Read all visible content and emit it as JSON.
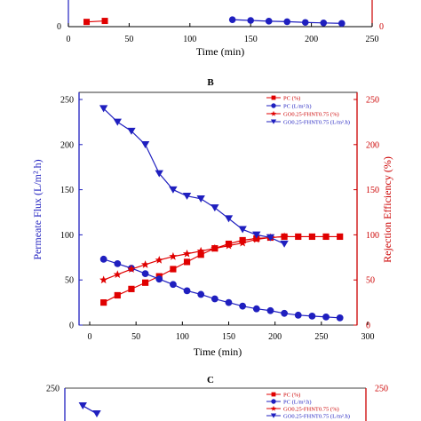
{
  "colors": {
    "blue": "#1f1fbf",
    "red": "#e00000",
    "axis_red": "#cc0000",
    "black": "#000000"
  },
  "chart_data": [
    {
      "panel": "top",
      "type": "line",
      "label": "",
      "xlabel": "Time (min)",
      "x_ticks": [
        "0",
        "50",
        "100",
        "150",
        "200",
        "250"
      ],
      "xlim": [
        0,
        250
      ],
      "left_ticks": [
        "0"
      ],
      "right_ticks": [
        "0"
      ],
      "series": [
        {
          "marker": "square",
          "color": "#e00000",
          "axis": "right",
          "x": [
            15,
            30
          ],
          "y": [
            19,
            23
          ]
        },
        {
          "marker": "circle",
          "color": "#1f1fbf",
          "axis": "left",
          "x": [
            135,
            150,
            165,
            180,
            195,
            210,
            225
          ],
          "y": [
            28,
            25,
            22,
            20,
            17,
            15,
            13
          ]
        }
      ]
    },
    {
      "panel": "B",
      "type": "line",
      "label": "B",
      "xlabel": "Time (min)",
      "ylabel": "Permeate Flux (L/m².h)",
      "y2label": "Rejection Efficiency (%)",
      "xlim": [
        0,
        300
      ],
      "ylim": [
        0,
        250
      ],
      "y2lim": [
        0,
        250
      ],
      "x_ticks": [
        "0",
        "50",
        "100",
        "150",
        "200",
        "250",
        "300"
      ],
      "left_ticks": [
        "0",
        "50",
        "100",
        "150",
        "200",
        "250"
      ],
      "right_ticks": [
        "0",
        "50",
        "100",
        "150",
        "200",
        "250"
      ],
      "legend_position": "top-right",
      "series": [
        {
          "name": "PC (%)",
          "marker": "square",
          "color": "#e00000",
          "axis": "right",
          "x": [
            15,
            30,
            45,
            60,
            75,
            90,
            105,
            120,
            135,
            150,
            165,
            180,
            195,
            210,
            225,
            240,
            255,
            270
          ],
          "y": [
            25,
            33,
            40,
            47,
            54,
            62,
            70,
            78,
            85,
            90,
            94,
            96,
            97,
            98,
            98,
            98,
            98,
            98
          ]
        },
        {
          "name": "PC (L/m².h)",
          "marker": "circle",
          "color": "#1f1fbf",
          "axis": "left",
          "x": [
            15,
            30,
            45,
            60,
            75,
            90,
            105,
            120,
            135,
            150,
            165,
            180,
            195,
            210,
            225,
            240,
            255,
            270
          ],
          "y": [
            73,
            68,
            63,
            57,
            51,
            45,
            38,
            34,
            29,
            25,
            21,
            18,
            16,
            13,
            11,
            10,
            9,
            8
          ]
        },
        {
          "name": "GO0.25-FHNT0.75 (%)",
          "marker": "star",
          "color": "#e00000",
          "axis": "right",
          "x": [
            15,
            30,
            45,
            60,
            75,
            90,
            105,
            120,
            135,
            150,
            165,
            180,
            195,
            210
          ],
          "y": [
            50,
            56,
            62,
            67,
            72,
            76,
            79,
            82,
            85,
            88,
            91,
            95,
            97,
            98
          ]
        },
        {
          "name": "GO0.25-FHNT0.75 (L/m².h)",
          "marker": "triangle-down",
          "color": "#1f1fbf",
          "axis": "left",
          "x": [
            15,
            30,
            45,
            60,
            75,
            90,
            105,
            120,
            135,
            150,
            165,
            180,
            195,
            210
          ],
          "y": [
            240,
            225,
            215,
            200,
            168,
            150,
            143,
            140,
            130,
            118,
            106,
            100,
            97,
            90
          ]
        }
      ]
    },
    {
      "panel": "C",
      "type": "line",
      "label": "C",
      "left_ticks": [
        "250"
      ],
      "right_ticks": [
        "250"
      ],
      "legend_position": "top-right",
      "series": [
        {
          "name": "PC (%)",
          "marker": "square",
          "color": "#e00000"
        },
        {
          "name": "PC (L/m².h)",
          "marker": "circle",
          "color": "#1f1fbf"
        },
        {
          "name": "GO0.25-FHNT0.75 (%)",
          "marker": "star",
          "color": "#e00000"
        },
        {
          "name": "GO0.25-FHNT0.75 (L/m².h)",
          "marker": "triangle-down",
          "color": "#1f1fbf",
          "x": [
            5,
            20
          ],
          "y": [
            228,
            218
          ]
        }
      ]
    }
  ]
}
